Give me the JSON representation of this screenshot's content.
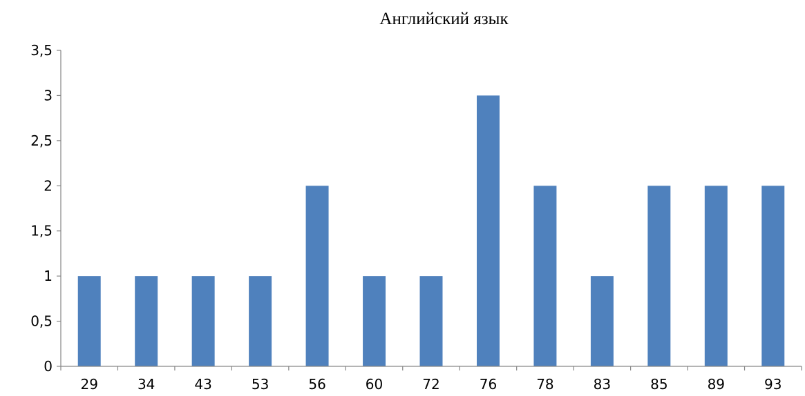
{
  "chart_data": {
    "type": "bar",
    "title": "Английский язык",
    "xlabel": "",
    "ylabel": "",
    "categories": [
      "29",
      "34",
      "43",
      "53",
      "56",
      "60",
      "72",
      "76",
      "78",
      "83",
      "85",
      "89",
      "93"
    ],
    "values": [
      1,
      1,
      1,
      1,
      2,
      1,
      1,
      3,
      2,
      1,
      2,
      2,
      2
    ],
    "y_ticks": [
      "0",
      "0,5",
      "1",
      "1,5",
      "2",
      "2,5",
      "3",
      "3,5"
    ],
    "ylim": [
      0,
      3.5
    ],
    "grid": false,
    "legend": "none",
    "bar_color": "#4F81BD",
    "axis_color": "#868686"
  }
}
